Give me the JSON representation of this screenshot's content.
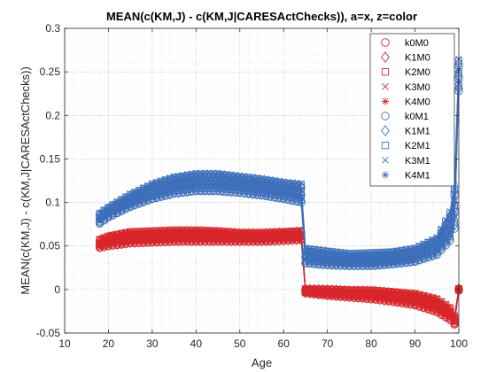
{
  "chart_data": {
    "type": "line",
    "title": "MEAN(c(KM,J) - c(KM,J|CARESActChecks)), a=x, z=color",
    "xlabel": "Age",
    "ylabel": "MEAN(c(KM,J) - c(KM,J|CARESActChecks))",
    "xlim": [
      10,
      100
    ],
    "ylim": [
      -0.05,
      0.3
    ],
    "xticks": [
      "10",
      "20",
      "30",
      "40",
      "50",
      "60",
      "70",
      "80",
      "90",
      "100"
    ],
    "yticks": [
      "-0.05",
      "0",
      "0.05",
      "0.1",
      "0.15",
      "0.2",
      "0.25",
      "0.3"
    ],
    "grid": "on (major and minor dotted)",
    "legend_location": "top-right",
    "colors": {
      "M0": "#d7262b",
      "M1": "#3d6fba"
    },
    "series": [
      {
        "name": "k0M0",
        "marker": "circle",
        "group": "M0"
      },
      {
        "name": "K1M0",
        "marker": "diamond",
        "group": "M0"
      },
      {
        "name": "K2M0",
        "marker": "square",
        "group": "M0"
      },
      {
        "name": "K3M0",
        "marker": "x",
        "group": "M0"
      },
      {
        "name": "K4M0",
        "marker": "asterisk",
        "group": "M0"
      },
      {
        "name": "k0M1",
        "marker": "circle",
        "group": "M1"
      },
      {
        "name": "K1M1",
        "marker": "diamond",
        "group": "M1"
      },
      {
        "name": "K2M1",
        "marker": "square",
        "group": "M1"
      },
      {
        "name": "K3M1",
        "marker": "x",
        "group": "M1"
      },
      {
        "name": "K4M1",
        "marker": "asterisk",
        "group": "M1"
      }
    ],
    "approx_curves": {
      "M0": {
        "ages": [
          18,
          20,
          25,
          30,
          35,
          40,
          45,
          50,
          55,
          60,
          64,
          65,
          70,
          75,
          80,
          85,
          90,
          95,
          98,
          99,
          100
        ],
        "upper": [
          0.058,
          0.062,
          0.067,
          0.068,
          0.069,
          0.069,
          0.068,
          0.066,
          0.066,
          0.067,
          0.068,
          0.001,
          0.001,
          0.0,
          0.0,
          -0.002,
          -0.004,
          -0.01,
          -0.02,
          -0.03,
          0.001
        ],
        "lower": [
          0.048,
          0.05,
          0.053,
          0.054,
          0.055,
          0.055,
          0.055,
          0.055,
          0.055,
          0.056,
          0.057,
          -0.004,
          -0.007,
          -0.009,
          -0.011,
          -0.014,
          -0.018,
          -0.026,
          -0.035,
          -0.04,
          -0.001
        ]
      },
      "M1": {
        "ages": [
          18,
          20,
          25,
          30,
          35,
          40,
          45,
          50,
          55,
          60,
          64,
          65,
          70,
          75,
          80,
          85,
          90,
          95,
          98,
          99,
          100
        ],
        "upper": [
          0.088,
          0.095,
          0.11,
          0.122,
          0.13,
          0.134,
          0.134,
          0.131,
          0.128,
          0.124,
          0.122,
          0.048,
          0.045,
          0.042,
          0.043,
          0.044,
          0.048,
          0.06,
          0.09,
          0.12,
          0.265
        ],
        "lower": [
          0.076,
          0.083,
          0.095,
          0.104,
          0.11,
          0.113,
          0.113,
          0.111,
          0.108,
          0.104,
          0.1,
          0.03,
          0.028,
          0.027,
          0.027,
          0.029,
          0.032,
          0.04,
          0.056,
          0.07,
          0.228
        ]
      }
    }
  }
}
